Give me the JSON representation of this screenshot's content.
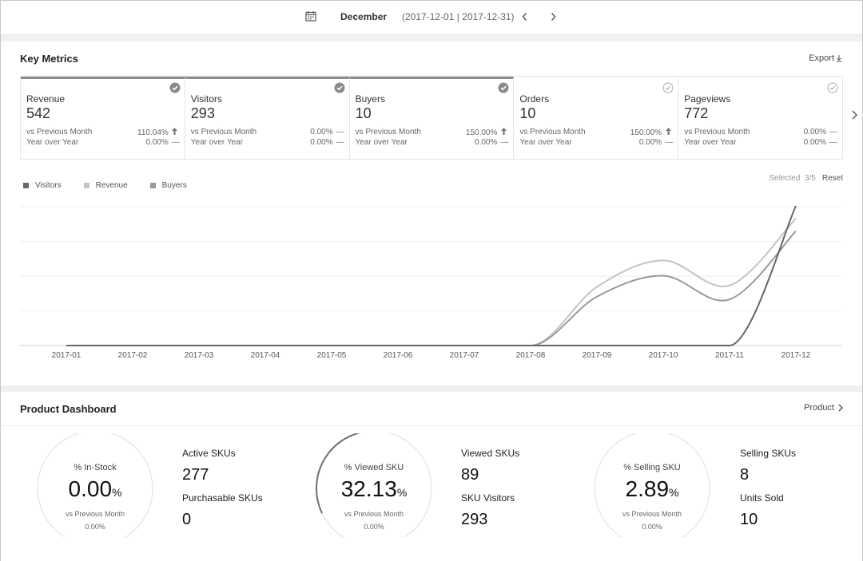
{
  "datebar": {
    "month": "December",
    "range": "(2017-12-01 | 2017-12-31)"
  },
  "key_metrics": {
    "title": "Key Metrics",
    "export_label": "Export",
    "selected_label": "Selected",
    "selected_count": "3/5",
    "reset_label": "Reset",
    "cards": [
      {
        "name": "Revenue",
        "value": "542",
        "selected": true,
        "row1_label": "vs Previous Month",
        "row1_value": "110.04%",
        "row1_trend": "up",
        "row2_label": "Year over Year",
        "row2_value": "0.00%",
        "row2_trend": "flat"
      },
      {
        "name": "Visitors",
        "value": "293",
        "selected": true,
        "row1_label": "vs Previous Month",
        "row1_value": "0.00%",
        "row1_trend": "flat",
        "row2_label": "Year over Year",
        "row2_value": "0.00%",
        "row2_trend": "flat"
      },
      {
        "name": "Buyers",
        "value": "10",
        "selected": true,
        "row1_label": "vs Previous Month",
        "row1_value": "150.00%",
        "row1_trend": "up",
        "row2_label": "Year over Year",
        "row2_value": "0.00%",
        "row2_trend": "flat"
      },
      {
        "name": "Orders",
        "value": "10",
        "selected": false,
        "row1_label": "vs Previous Month",
        "row1_value": "150.00%",
        "row1_trend": "up",
        "row2_label": "Year over Year",
        "row2_value": "0.00%",
        "row2_trend": "flat"
      },
      {
        "name": "Pageviews",
        "value": "772",
        "selected": false,
        "row1_label": "vs Previous Month",
        "row1_value": "0.00%",
        "row1_trend": "flat",
        "row2_label": "Year over Year",
        "row2_value": "0.00%",
        "row2_trend": "flat"
      }
    ]
  },
  "chart_data": {
    "type": "line",
    "categories": [
      "2017-01",
      "2017-02",
      "2017-03",
      "2017-04",
      "2017-05",
      "2017-06",
      "2017-07",
      "2017-08",
      "2017-09",
      "2017-10",
      "2017-11",
      "2017-12"
    ],
    "series": [
      {
        "name": "Visitors",
        "color": "#666666",
        "values": [
          0,
          0,
          0,
          0,
          0,
          0,
          0,
          0,
          0,
          0,
          0,
          1.0
        ]
      },
      {
        "name": "Revenue",
        "color": "#c4c4c4",
        "values": [
          0,
          0,
          0,
          0,
          0,
          0,
          0,
          0,
          0.42,
          0.61,
          0.43,
          0.91
        ]
      },
      {
        "name": "Buyers",
        "color": "#9a9a9a",
        "values": [
          0,
          0,
          0,
          0,
          0,
          0,
          0,
          0,
          0.35,
          0.5,
          0.33,
          0.82
        ]
      }
    ],
    "grid": true,
    "legend": "top-left"
  },
  "product_dashboard": {
    "title": "Product Dashboard",
    "product_link": "Product",
    "gauges": [
      {
        "title": "% In-Stock",
        "value": "0.00",
        "pct": "%",
        "fraction": 0.0,
        "sub_label": "vs Previous Month",
        "sub_value": "0.00%",
        "stat1_label": "Active SKUs",
        "stat1_value": "277",
        "stat2_label": "Purchasable SKUs",
        "stat2_value": "0"
      },
      {
        "title": "% Viewed SKU",
        "value": "32.13",
        "pct": "%",
        "fraction": 0.3213,
        "sub_label": "vs Previous Month",
        "sub_value": "0.00%",
        "stat1_label": "Viewed SKUs",
        "stat1_value": "89",
        "stat2_label": "SKU Visitors",
        "stat2_value": "293"
      },
      {
        "title": "% Selling SKU",
        "value": "2.89",
        "pct": "%",
        "fraction": 0.0289,
        "sub_label": "vs Previous Month",
        "sub_value": "0.00%",
        "stat1_label": "Selling SKUs",
        "stat1_value": "8",
        "stat2_label": "Units Sold",
        "stat2_value": "10"
      }
    ]
  }
}
